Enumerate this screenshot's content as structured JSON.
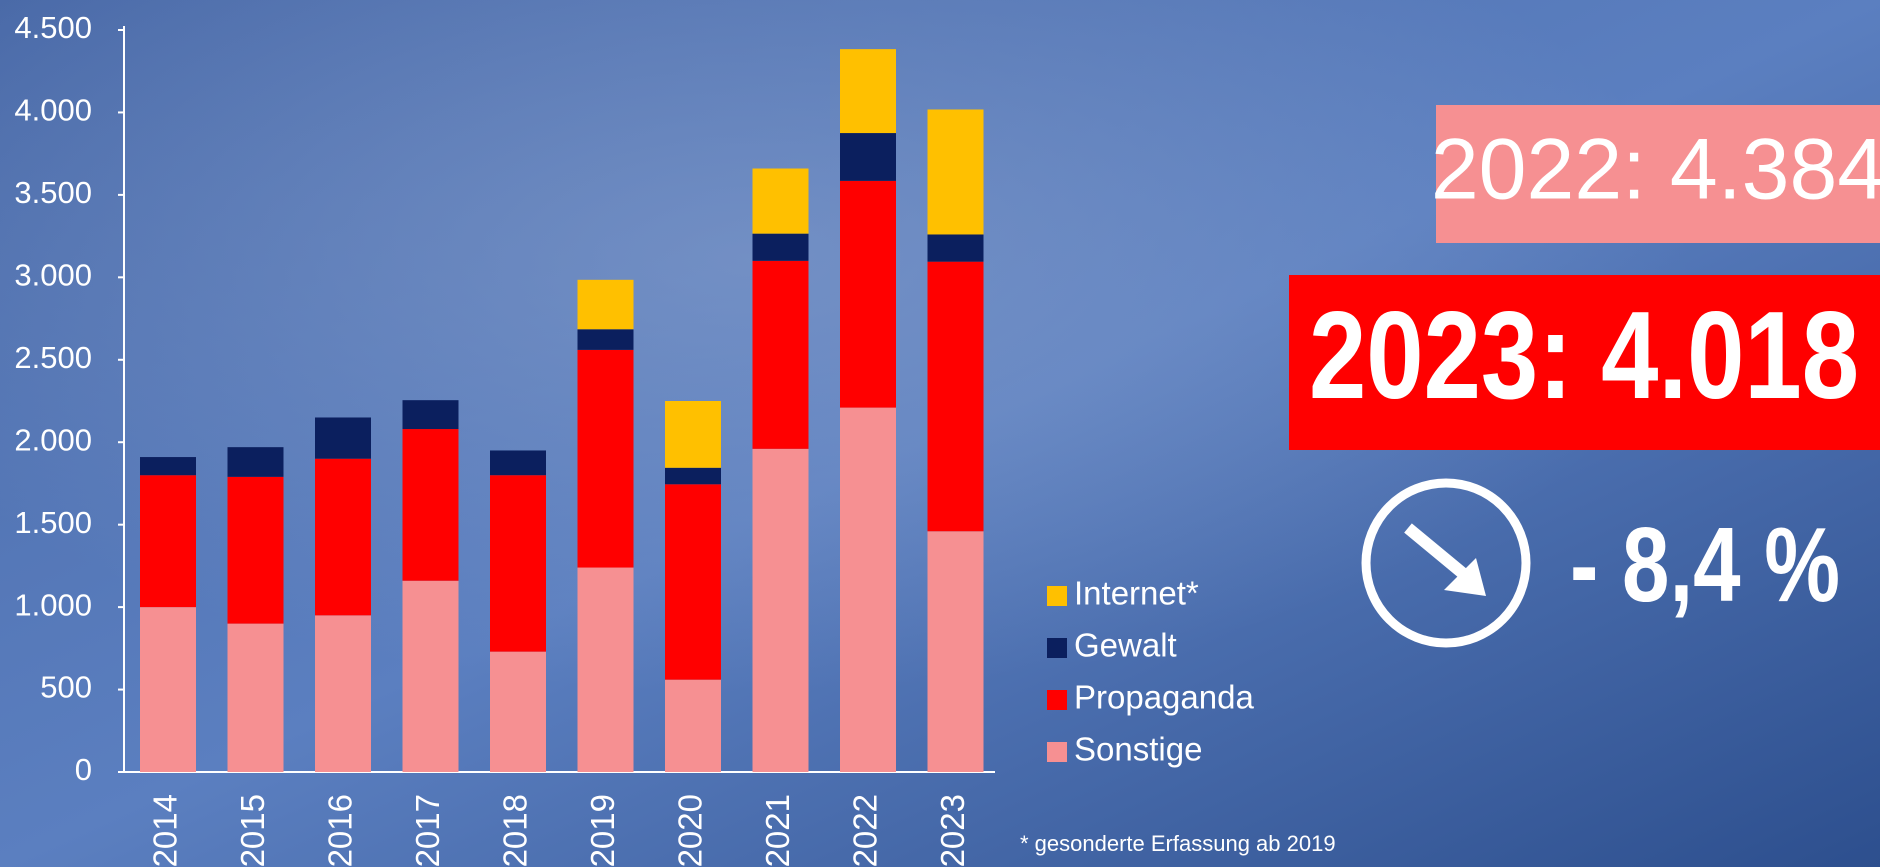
{
  "chart_data": {
    "type": "bar",
    "stacked": true,
    "categories": [
      "2014",
      "2015",
      "2016",
      "2017",
      "2018",
      "2019",
      "2020",
      "2021",
      "2022",
      "2023"
    ],
    "series": [
      {
        "name": "Internet*",
        "color": "#ffc000",
        "values": [
          null,
          null,
          null,
          null,
          null,
          300,
          405,
          395,
          509,
          758
        ]
      },
      {
        "name": "Gewalt",
        "color": "#0b1f5e",
        "values": [
          110,
          180,
          250,
          175,
          150,
          125,
          100,
          165,
          290,
          165
        ]
      },
      {
        "name": "Propaganda",
        "color": "#ff0000",
        "values": [
          800,
          890,
          950,
          920,
          1070,
          1320,
          1185,
          1140,
          1375,
          1635
        ]
      },
      {
        "name": "Sonstige",
        "color": "#f69092",
        "values": [
          1000,
          900,
          950,
          1160,
          730,
          1240,
          560,
          1960,
          2210,
          1460
        ]
      }
    ],
    "ylim": [
      0,
      4500
    ],
    "yticks": [
      0,
      500,
      {
        "value": 1000,
        "label": "1.000"
      },
      {
        "value": 1500,
        "label": "1.500"
      },
      {
        "value": 2000,
        "label": "2.000"
      },
      {
        "value": 2500,
        "label": "2.500"
      },
      {
        "value": 3000,
        "label": "3.000"
      },
      {
        "value": 3500,
        "label": "3.500"
      },
      {
        "value": 4000,
        "label": "4.000"
      },
      {
        "value": 4500,
        "label": "4.500"
      }
    ],
    "grid": false,
    "legend": "right",
    "annotations": [
      "2022: 4.384",
      "2023: 4.018",
      "- 8,4 %"
    ],
    "footnote": "* gesonderte Erfassung ab 2019"
  }
}
